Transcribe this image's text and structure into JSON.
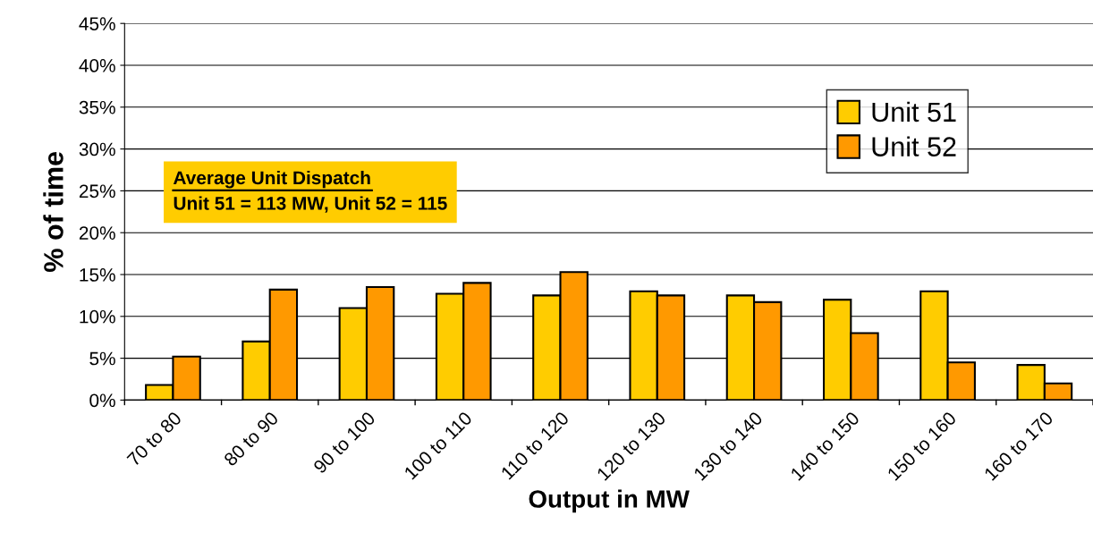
{
  "chart_data": {
    "type": "bar",
    "categories": [
      "70 to 80",
      "80 to 90",
      "90 to 100",
      "100 to 110",
      "110 to 120",
      "120 to 130",
      "130 to 140",
      "140 to 150",
      "150 to 160",
      "160 to 170"
    ],
    "series": [
      {
        "name": "Unit 51",
        "color": "#ffcc00",
        "values": [
          1.8,
          7.0,
          11.0,
          12.7,
          12.5,
          13.0,
          12.5,
          12.0,
          13.0,
          4.2
        ]
      },
      {
        "name": "Unit 52",
        "color": "#ff9900",
        "values": [
          5.2,
          13.2,
          13.5,
          14.0,
          15.3,
          12.5,
          11.7,
          8.0,
          4.5,
          2.0
        ]
      }
    ],
    "xlabel": "Output in MW",
    "ylabel": "% of time",
    "ylim": [
      0,
      45
    ],
    "yticks": [
      {
        "value": 0,
        "label": "0%"
      },
      {
        "value": 5,
        "label": "5%"
      },
      {
        "value": 10,
        "label": "10%"
      },
      {
        "value": 15,
        "label": "15%"
      },
      {
        "value": 20,
        "label": "20%"
      },
      {
        "value": 25,
        "label": "25%"
      },
      {
        "value": 30,
        "label": "30%"
      },
      {
        "value": 35,
        "label": "35%"
      },
      {
        "value": 40,
        "label": "40%"
      },
      {
        "value": 45,
        "label": "45%"
      }
    ],
    "grid": "y",
    "legend": "top right",
    "annotations": [
      "Average Unit Dispatch",
      "Unit 51 = 113 MW, Unit 52 = 115"
    ]
  }
}
